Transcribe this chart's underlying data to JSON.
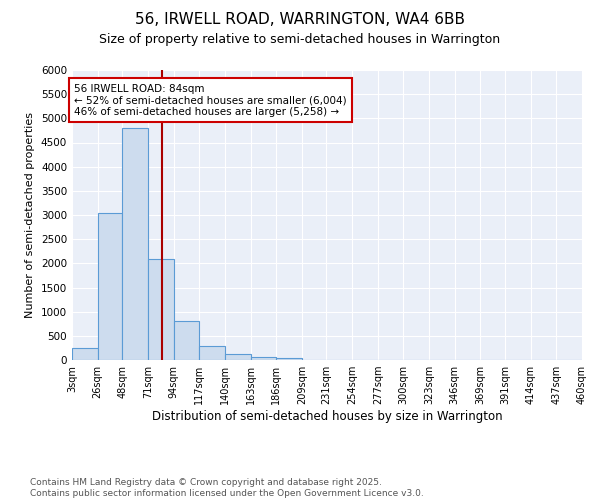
{
  "title1": "56, IRWELL ROAD, WARRINGTON, WA4 6BB",
  "title2": "Size of property relative to semi-detached houses in Warrington",
  "xlabel": "Distribution of semi-detached houses by size in Warrington",
  "ylabel": "Number of semi-detached properties",
  "bin_edges": [
    3,
    26,
    48,
    71,
    94,
    117,
    140,
    163,
    186,
    209,
    231,
    254,
    277,
    300,
    323,
    346,
    369,
    391,
    414,
    437,
    460
  ],
  "bar_heights": [
    250,
    3050,
    4800,
    2100,
    800,
    300,
    120,
    60,
    50,
    0,
    0,
    0,
    0,
    0,
    0,
    0,
    0,
    0,
    0,
    0
  ],
  "bar_color": "#cddcee",
  "bar_edgecolor": "#5b9bd5",
  "vline_x": 84,
  "vline_color": "#aa0000",
  "annotation_text": "56 IRWELL ROAD: 84sqm\n← 52% of semi-detached houses are smaller (6,004)\n46% of semi-detached houses are larger (5,258) →",
  "annotation_box_color": "white",
  "annotation_box_edgecolor": "#cc0000",
  "ylim": [
    0,
    6000
  ],
  "yticks": [
    0,
    500,
    1000,
    1500,
    2000,
    2500,
    3000,
    3500,
    4000,
    4500,
    5000,
    5500,
    6000
  ],
  "xtick_labels": [
    "3sqm",
    "26sqm",
    "48sqm",
    "71sqm",
    "94sqm",
    "117sqm",
    "140sqm",
    "163sqm",
    "186sqm",
    "209sqm",
    "231sqm",
    "254sqm",
    "277sqm",
    "300sqm",
    "323sqm",
    "346sqm",
    "369sqm",
    "391sqm",
    "414sqm",
    "437sqm",
    "460sqm"
  ],
  "footer_text": "Contains HM Land Registry data © Crown copyright and database right 2025.\nContains public sector information licensed under the Open Government Licence v3.0.",
  "bg_color": "#eaeff8",
  "grid_color": "#ffffff",
  "title1_fontsize": 11,
  "title2_fontsize": 9,
  "annotation_fontsize": 7.5,
  "footer_fontsize": 6.5,
  "ylabel_fontsize": 8,
  "xlabel_fontsize": 8.5
}
